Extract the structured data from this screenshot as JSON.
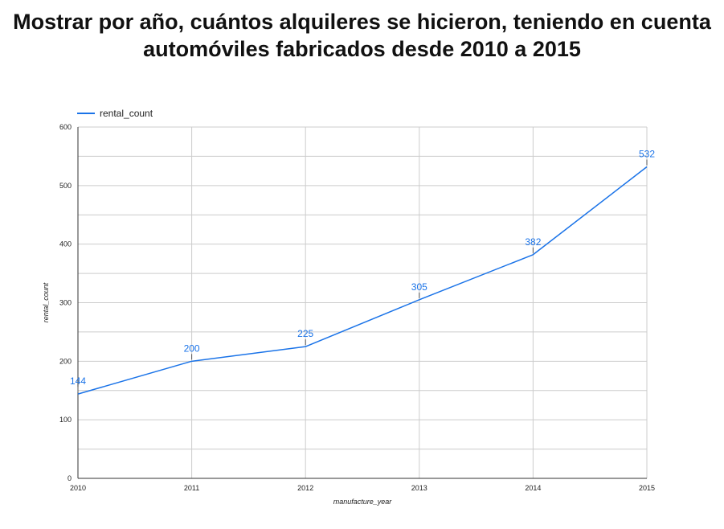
{
  "title_lines": [
    "Mostrar por año, cuántos alquileres se hicieron, teniendo en cuenta",
    "automóviles fabricados desde 2010 a 2015"
  ],
  "chart_data": {
    "type": "line",
    "title": "Mostrar por año, cuántos alquileres se hicieron, teniendo en cuenta automóviles fabricados desde 2010 a 2015",
    "xlabel": "manufacture_year",
    "ylabel": "rental_count",
    "x": [
      "2010",
      "2011",
      "2012",
      "2013",
      "2014",
      "2015"
    ],
    "series": [
      {
        "name": "rental_count",
        "values": [
          144,
          200,
          225,
          305,
          382,
          532
        ],
        "color": "#1a73e8"
      }
    ],
    "ylim": [
      0,
      600
    ],
    "yticks": [
      "0",
      "100",
      "200",
      "300",
      "400",
      "500",
      "600"
    ],
    "data_labels": [
      "144",
      "200",
      "225",
      "305",
      "382",
      "532"
    ],
    "grid": true,
    "legend": "top-left",
    "line_color": "#1a73e8",
    "grid_color": "#cccccc"
  }
}
